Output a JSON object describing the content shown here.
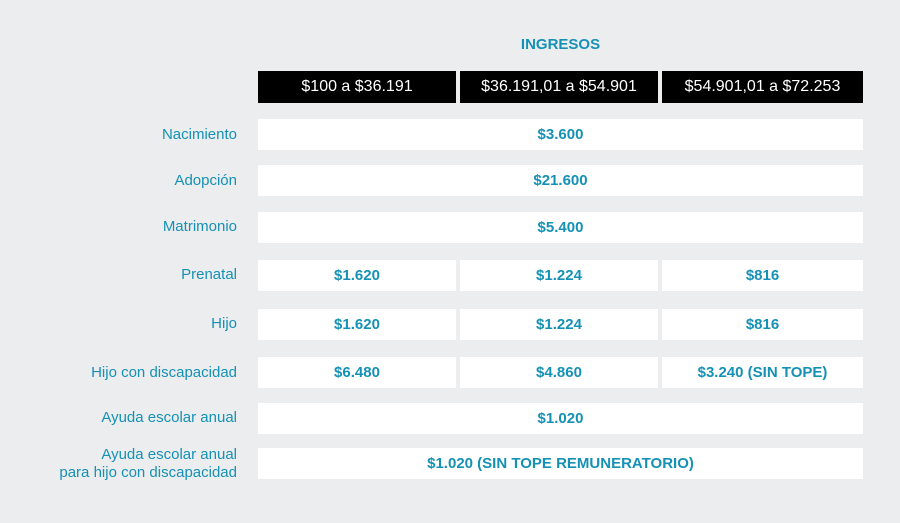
{
  "title": "INGRESOS",
  "headers": [
    "$100 a $36.191",
    "$36.191,01 a $54.901",
    "$54.901,01 a $72.253"
  ],
  "rows": {
    "nacimiento": {
      "label": "Nacimiento",
      "value": "$3.600"
    },
    "adopcion": {
      "label": "Adopción",
      "value": "$21.600"
    },
    "matrimonio": {
      "label": "Matrimonio",
      "value": "$5.400"
    },
    "prenatal": {
      "label": "Prenatal",
      "values": [
        "$1.620",
        "$1.224",
        "$816"
      ]
    },
    "hijo": {
      "label": "Hijo",
      "values": [
        "$1.620",
        "$1.224",
        "$816"
      ]
    },
    "hijo_discapacidad": {
      "label": "Hijo con discapacidad",
      "values": [
        "$6.480",
        "$4.860",
        "$3.240 (SIN TOPE)"
      ]
    },
    "ayuda_escolar": {
      "label": "Ayuda escolar anual",
      "value": "$1.020"
    },
    "ayuda_escolar_discapacidad": {
      "label_line1": "Ayuda escolar anual",
      "label_line2": "para hijo con discapacidad",
      "value": "$1.020 (SIN TOPE REMUNERATORIO)"
    }
  }
}
